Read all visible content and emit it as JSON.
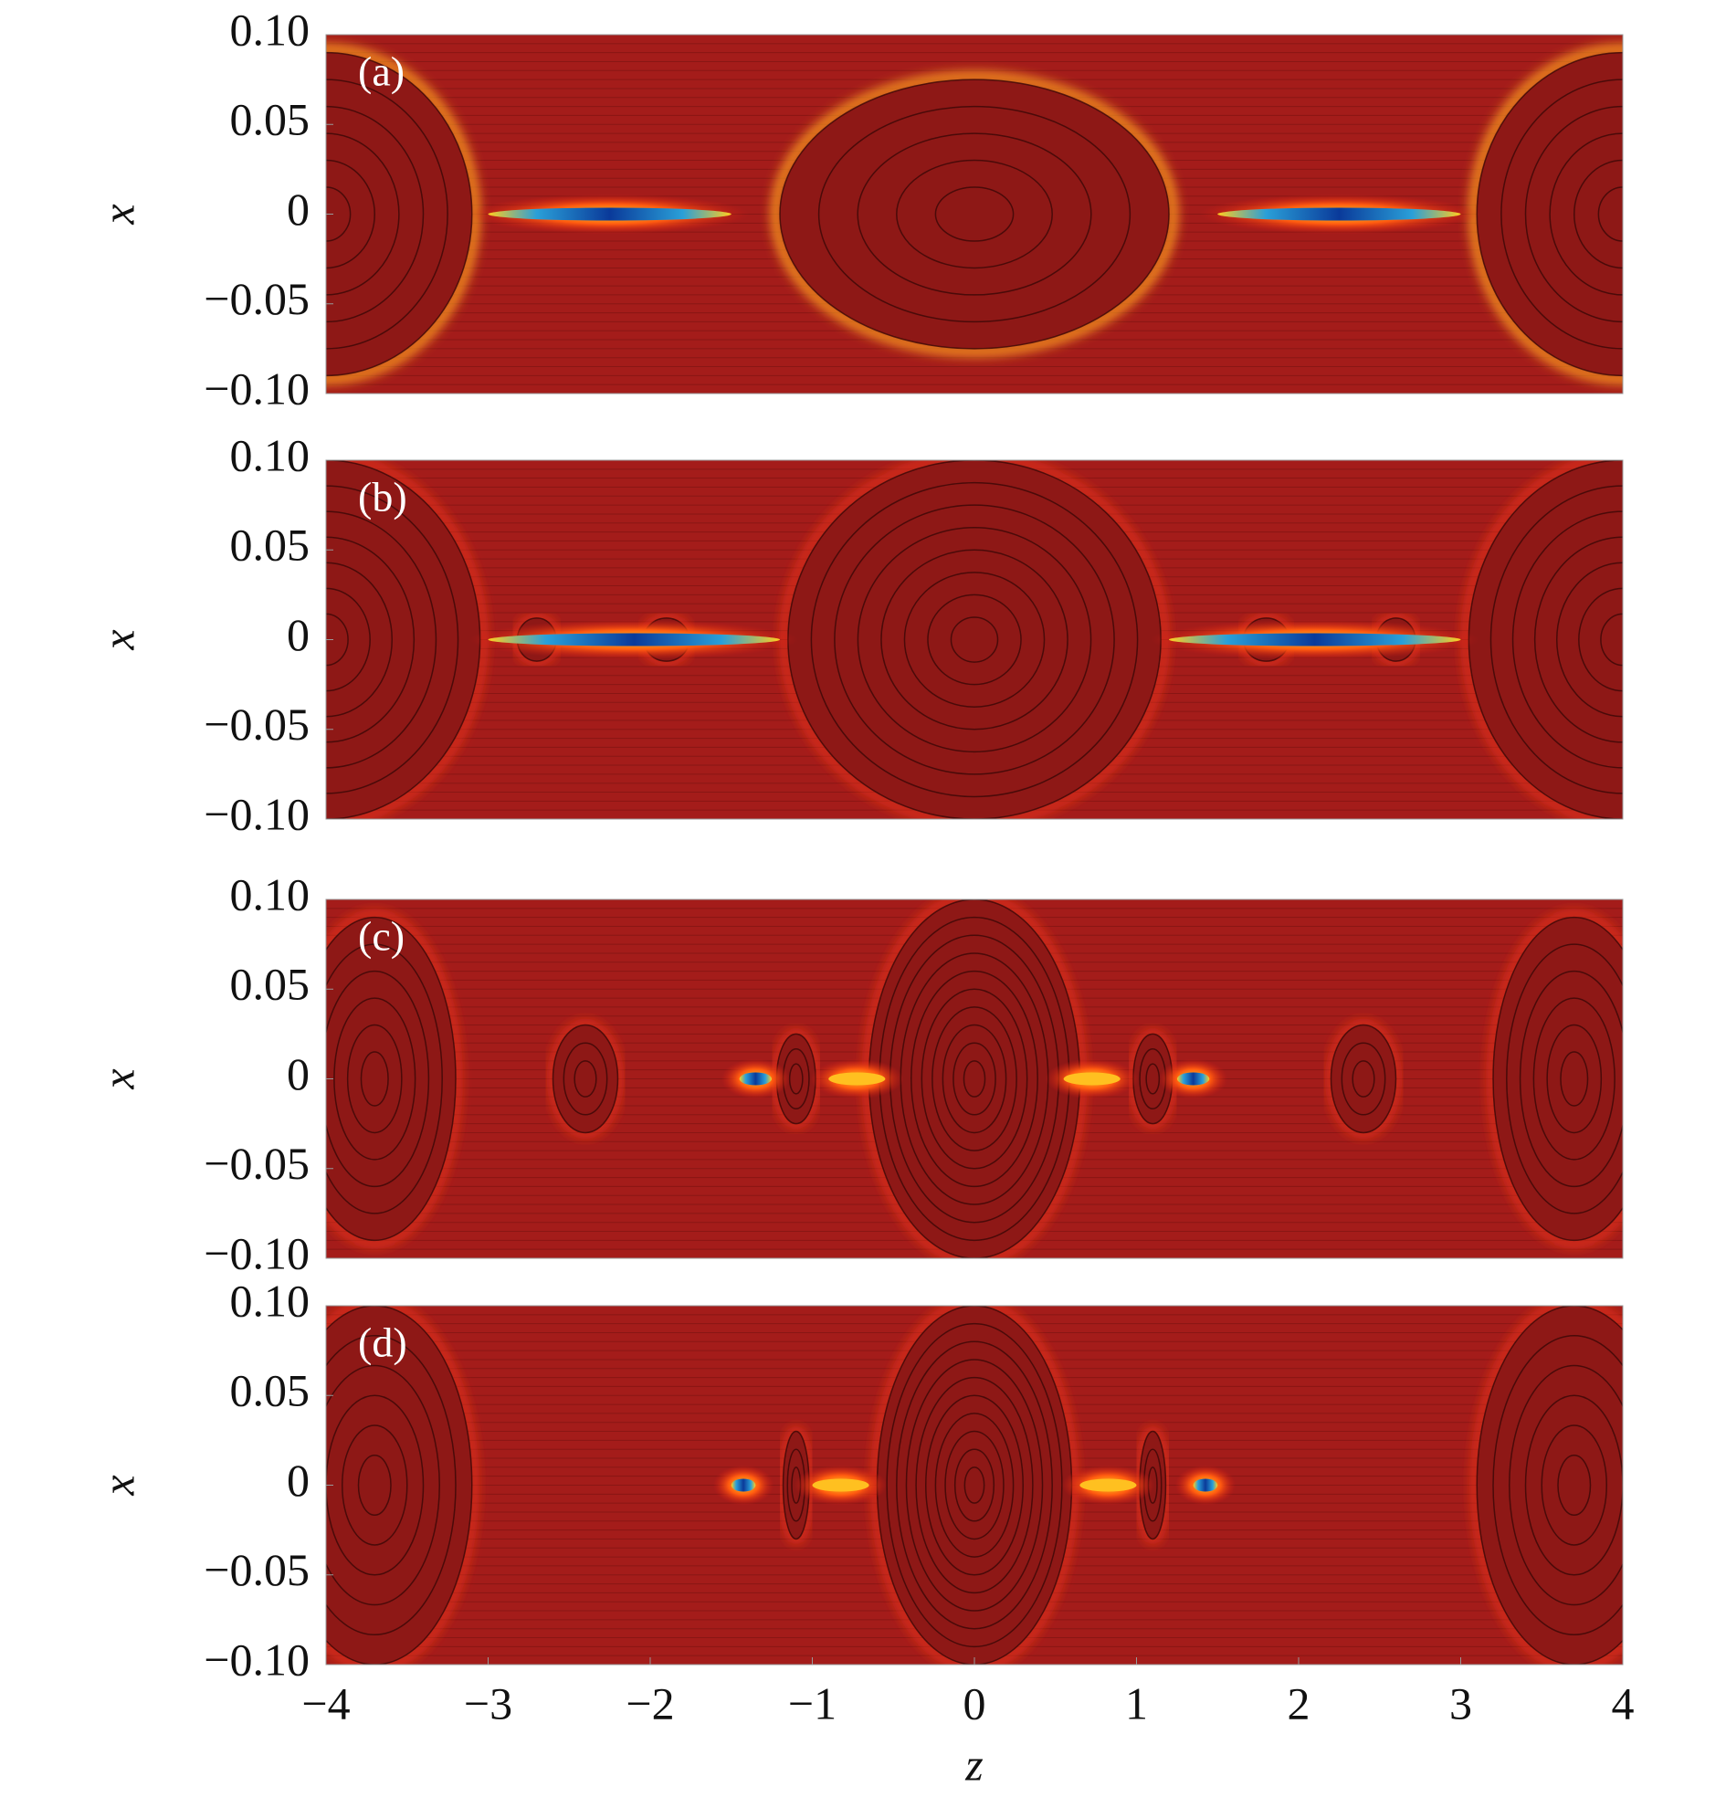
{
  "chart_data": [
    {
      "type": "contour",
      "panel_label": "(a)",
      "ylabel": "x",
      "xlim": [
        -4,
        4
      ],
      "ylim": [
        -0.1,
        0.1
      ],
      "yticks": [
        {
          "value": -0.1,
          "label": "−0.10"
        },
        {
          "value": -0.05,
          "label": "−0.05"
        },
        0,
        0.05,
        {
          "value": 0.1,
          "label": "0.10"
        }
      ]
    },
    {
      "type": "contour",
      "panel_label": "(b)",
      "ylabel": "x",
      "xlim": [
        -4,
        4
      ],
      "ylim": [
        -0.1,
        0.1
      ],
      "yticks": [
        {
          "value": -0.1,
          "label": "−0.10"
        },
        {
          "value": -0.05,
          "label": "−0.05"
        },
        0,
        0.05,
        {
          "value": 0.1,
          "label": "0.10"
        }
      ]
    },
    {
      "type": "contour",
      "panel_label": "(c)",
      "ylabel": "x",
      "xlim": [
        -4,
        4
      ],
      "ylim": [
        -0.1,
        0.1
      ],
      "yticks": [
        {
          "value": -0.1,
          "label": "−0.10"
        },
        {
          "value": -0.05,
          "label": "−0.05"
        },
        0,
        0.05,
        {
          "value": 0.1,
          "label": "0.10"
        }
      ]
    },
    {
      "type": "contour",
      "panel_label": "(d)",
      "ylabel": "x",
      "xlabel": "z",
      "xlim": [
        -4,
        4
      ],
      "ylim": [
        -0.1,
        0.1
      ],
      "yticks": [
        {
          "value": -0.1,
          "label": "−0.10"
        },
        {
          "value": -0.05,
          "label": "−0.05"
        },
        0,
        0.05,
        {
          "value": 0.1,
          "label": "0.10"
        }
      ],
      "xticks": [
        {
          "value": -4,
          "label": "−4"
        },
        {
          "value": -3,
          "label": "−3"
        },
        {
          "value": -2,
          "label": "−2"
        },
        {
          "value": -1,
          "label": "−1"
        },
        0,
        1,
        2,
        3,
        4
      ]
    }
  ]
}
